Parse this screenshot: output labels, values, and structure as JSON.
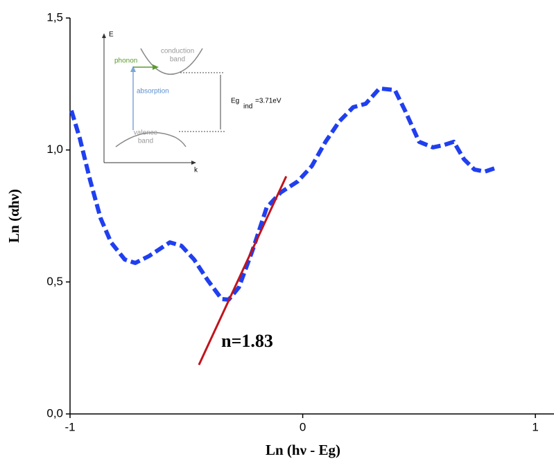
{
  "chart_data": {
    "type": "line",
    "xlabel": "Ln (hν - Eg)",
    "ylabel": "Ln (αhν)",
    "xlim": [
      -1,
      1.08
    ],
    "ylim": [
      0,
      1.5
    ],
    "xticks": [
      -1,
      0,
      1
    ],
    "yticks": [
      {
        "value": 0,
        "label": "0,0"
      },
      {
        "value": 0.5,
        "label": "0,5"
      },
      {
        "value": 1,
        "label": "1,0"
      },
      {
        "value": 1.5,
        "label": "1,5"
      }
    ],
    "series": [
      {
        "color": "#1f3ff0",
        "x": [
          -0.994,
          -0.958,
          -0.914,
          -0.869,
          -0.824,
          -0.765,
          -0.72,
          -0.661,
          -0.571,
          -0.521,
          -0.467,
          -0.408,
          -0.348,
          -0.318,
          -0.274,
          -0.214,
          -0.155,
          -0.095,
          -0.021,
          0.039,
          0.098,
          0.158,
          0.217,
          0.271,
          0.33,
          0.396,
          0.44,
          0.5,
          0.559,
          0.604,
          0.649,
          0.693,
          0.738,
          0.783,
          0.836
        ],
        "values": [
          1.149,
          1.044,
          0.886,
          0.742,
          0.65,
          0.585,
          0.572,
          0.598,
          0.65,
          0.637,
          0.585,
          0.506,
          0.435,
          0.433,
          0.48,
          0.624,
          0.782,
          0.839,
          0.881,
          0.939,
          1.031,
          1.109,
          1.162,
          1.175,
          1.233,
          1.227,
          1.149,
          1.031,
          1.01,
          1.018,
          1.031,
          0.965,
          0.926,
          0.918,
          0.934
        ]
      },
      {
        "color": "#c0141c",
        "x": [
          -0.446,
          -0.071
        ],
        "values": [
          0.186,
          0.9
        ]
      }
    ],
    "annotation": {
      "text": "n=1.83",
      "x": -0.35,
      "y": 0.27
    },
    "inset": {
      "e_axis": "E",
      "k_axis": "k",
      "phonon": "phonon",
      "conduction": [
        "conduction",
        "band"
      ],
      "absorption": "absorption",
      "valence": [
        "valence",
        "band"
      ],
      "eg": "Eg",
      "ind": "ind",
      "eg_value": "=3.71eV"
    }
  }
}
